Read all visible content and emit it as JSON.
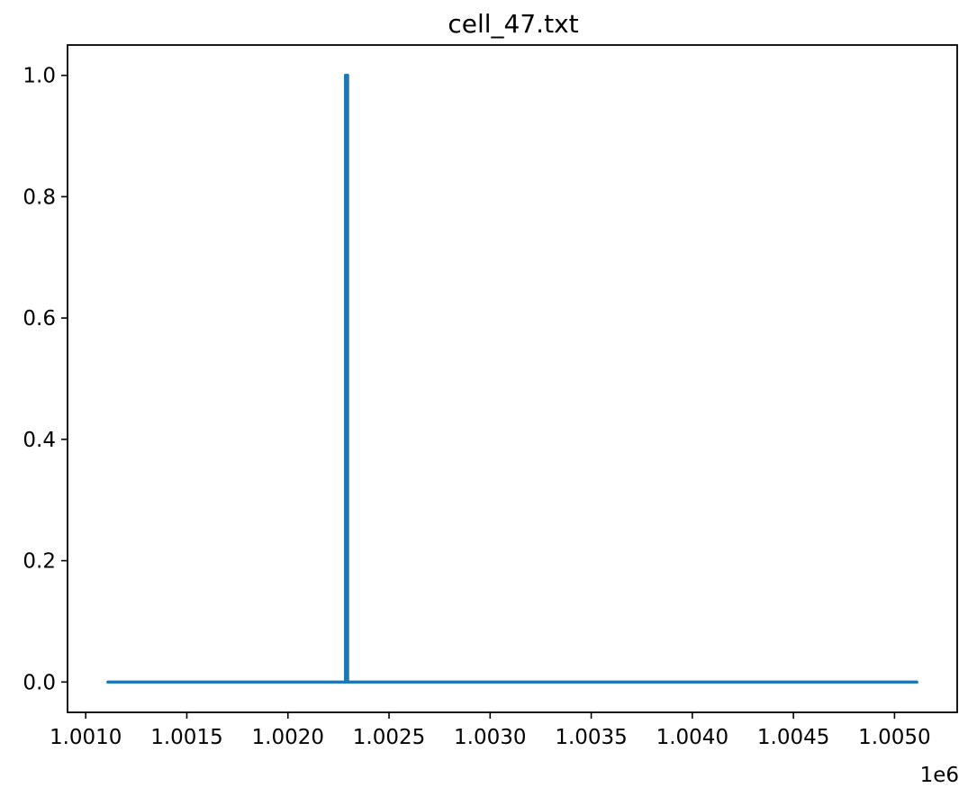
{
  "chart_data": {
    "type": "line",
    "title": "cell_47.txt",
    "xlabel": "",
    "ylabel": "",
    "x_offset_label": "1e6",
    "xlim": [
      1.00091,
      1.00531
    ],
    "ylim": [
      -0.05,
      1.05
    ],
    "x_ticks": [
      1.001,
      1.0015,
      1.002,
      1.0025,
      1.003,
      1.0035,
      1.004,
      1.0045,
      1.005
    ],
    "x_tick_labels": [
      "1.0010",
      "1.0015",
      "1.0020",
      "1.0025",
      "1.0030",
      "1.0035",
      "1.0040",
      "1.0045",
      "1.0050"
    ],
    "y_ticks": [
      0.0,
      0.2,
      0.4,
      0.6,
      0.8,
      1.0
    ],
    "y_tick_labels": [
      "0.0",
      "0.2",
      "0.4",
      "0.6",
      "0.8",
      "1.0"
    ],
    "grid": false,
    "series": [
      {
        "color": "#1f77b4",
        "x": [
          1.00111,
          1.002285,
          1.002285,
          1.002295,
          1.002295,
          1.00511
        ],
        "y": [
          0,
          0,
          1,
          1,
          0,
          0
        ]
      }
    ]
  }
}
